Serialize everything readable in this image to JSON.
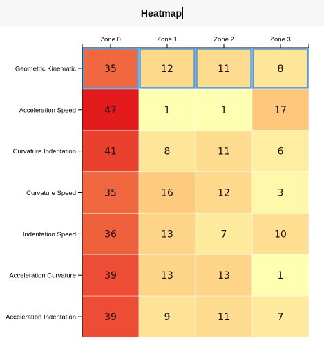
{
  "title": "Heatmap",
  "chart_data": {
    "type": "heatmap",
    "title": "Heatmap",
    "x_categories": [
      "Zone 0",
      "Zone 1",
      "Zone 2",
      "Zone 3"
    ],
    "y_categories": [
      "Geometric Kinematic",
      "Acceleration Speed",
      "Curvature Indentation",
      "Curvature Speed",
      "Indentation Speed",
      "Acceleration Curvature",
      "Acceleration Indentation"
    ],
    "values": [
      [
        35,
        12,
        11,
        8
      ],
      [
        47,
        1,
        1,
        17
      ],
      [
        41,
        8,
        11,
        6
      ],
      [
        35,
        16,
        12,
        3
      ],
      [
        36,
        13,
        7,
        10
      ],
      [
        39,
        13,
        13,
        1
      ],
      [
        39,
        9,
        11,
        7
      ]
    ],
    "color_scale": {
      "min": 1,
      "max": 47,
      "low_color": "#ffffb2",
      "mid_color": "#fdae61",
      "high_color": "#e31a1c"
    },
    "selected_row": "Geometric Kinematic",
    "selection_color": "#5b9bd5"
  }
}
